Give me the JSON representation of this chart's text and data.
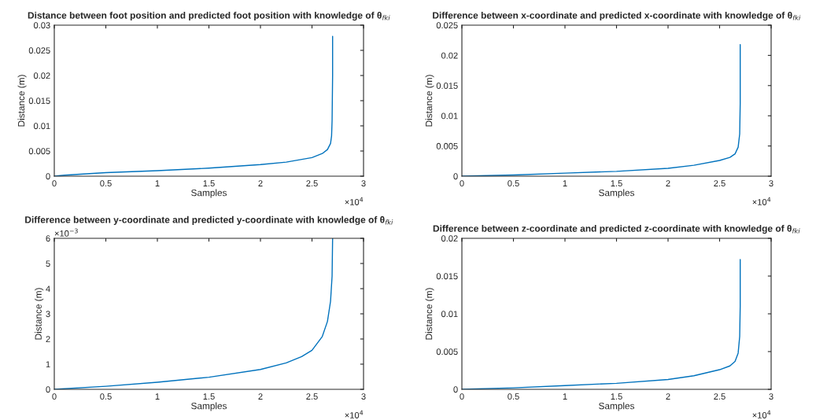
{
  "chart_data": [
    {
      "type": "line",
      "title": "Distance between foot position and predicted foot position with knowledge of θ$_{fki}$",
      "xlabel": "Samples",
      "ylabel": "Distance (m)",
      "annotations": [
        "×10$^{4}$"
      ],
      "x": [
        0,
        0.1,
        0.25,
        0.5,
        1,
        1.5,
        2,
        2.25,
        2.5,
        2.6,
        2.65,
        2.68,
        2.69,
        2.695,
        2.7,
        2.7
      ],
      "series": [
        {
          "color": "#0072bd",
          "values": [
            0,
            0.0002,
            0.0004,
            0.0007,
            0.0011,
            0.0016,
            0.0023,
            0.0028,
            0.0037,
            0.0045,
            0.0053,
            0.0065,
            0.008,
            0.011,
            0.02,
            0.0278
          ]
        }
      ],
      "xlim": [
        0,
        3
      ],
      "xticks": [
        0,
        0.5,
        1,
        1.5,
        2,
        2.5,
        3
      ],
      "ylim": [
        0,
        0.03
      ],
      "yticks": [
        0,
        0.005,
        0.01,
        0.015,
        0.02,
        0.025,
        0.03
      ],
      "grid": false,
      "legend": false
    },
    {
      "type": "line",
      "title": "Difference between x-coordinate and predicted x-coordinate with knowledge of θ$_{fki}$",
      "xlabel": "Samples",
      "ylabel": "Distance (m)",
      "annotations": [
        "×10$^{4}$"
      ],
      "x": [
        0,
        0.5,
        1,
        1.5,
        2,
        2.25,
        2.5,
        2.6,
        2.65,
        2.68,
        2.695,
        2.7,
        2.7
      ],
      "series": [
        {
          "color": "#0072bd",
          "values": [
            0,
            0.0002,
            0.0005,
            0.0008,
            0.0013,
            0.0018,
            0.0026,
            0.0031,
            0.0037,
            0.0048,
            0.007,
            0.012,
            0.0218
          ]
        }
      ],
      "xlim": [
        0,
        3
      ],
      "xticks": [
        0,
        0.5,
        1,
        1.5,
        2,
        2.5,
        3
      ],
      "ylim": [
        0,
        0.025
      ],
      "yticks": [
        0,
        0.005,
        0.01,
        0.015,
        0.02,
        0.025
      ],
      "grid": false,
      "legend": false
    },
    {
      "type": "line",
      "title": "Difference between y-coordinate and predicted y-coordinate with knowledge of θ$_{fki}$",
      "xlabel": "Samples",
      "ylabel": "Distance (m)",
      "annotations": [
        "×10$^{4}$",
        "×10$^{−3}$"
      ],
      "x": [
        0,
        0.5,
        1,
        1.5,
        2,
        2.25,
        2.4,
        2.5,
        2.6,
        2.65,
        2.68,
        2.695,
        2.7
      ],
      "series": [
        {
          "color": "#0072bd",
          "values": [
            0,
            0.12,
            0.28,
            0.48,
            0.79,
            1.05,
            1.3,
            1.55,
            2.1,
            2.7,
            3.5,
            4.5,
            6
          ]
        }
      ],
      "xlim": [
        0,
        3
      ],
      "xticks": [
        0,
        0.5,
        1,
        1.5,
        2,
        2.5,
        3
      ],
      "ylim": [
        0,
        6
      ],
      "yticks": [
        0,
        1,
        2,
        3,
        4,
        5,
        6
      ],
      "grid": false,
      "legend": false
    },
    {
      "type": "line",
      "title": "Difference between z-coordinate and predicted z-coordinate with knowledge of θ$_{fki}$",
      "xlabel": "Samples",
      "ylabel": "Distance (m)",
      "annotations": [
        "×10$^{4}$"
      ],
      "x": [
        0,
        0.5,
        1,
        1.5,
        2,
        2.25,
        2.5,
        2.6,
        2.65,
        2.68,
        2.695,
        2.7,
        2.7
      ],
      "series": [
        {
          "color": "#0072bd",
          "values": [
            0,
            0.0002,
            0.0005,
            0.0008,
            0.0013,
            0.0018,
            0.0026,
            0.0031,
            0.0037,
            0.0048,
            0.007,
            0.011,
            0.0172
          ]
        }
      ],
      "xlim": [
        0,
        3
      ],
      "xticks": [
        0,
        0.5,
        1,
        1.5,
        2,
        2.5,
        3
      ],
      "ylim": [
        0,
        0.02
      ],
      "yticks": [
        0,
        0.005,
        0.01,
        0.015,
        0.02
      ],
      "grid": false,
      "legend": false
    }
  ]
}
